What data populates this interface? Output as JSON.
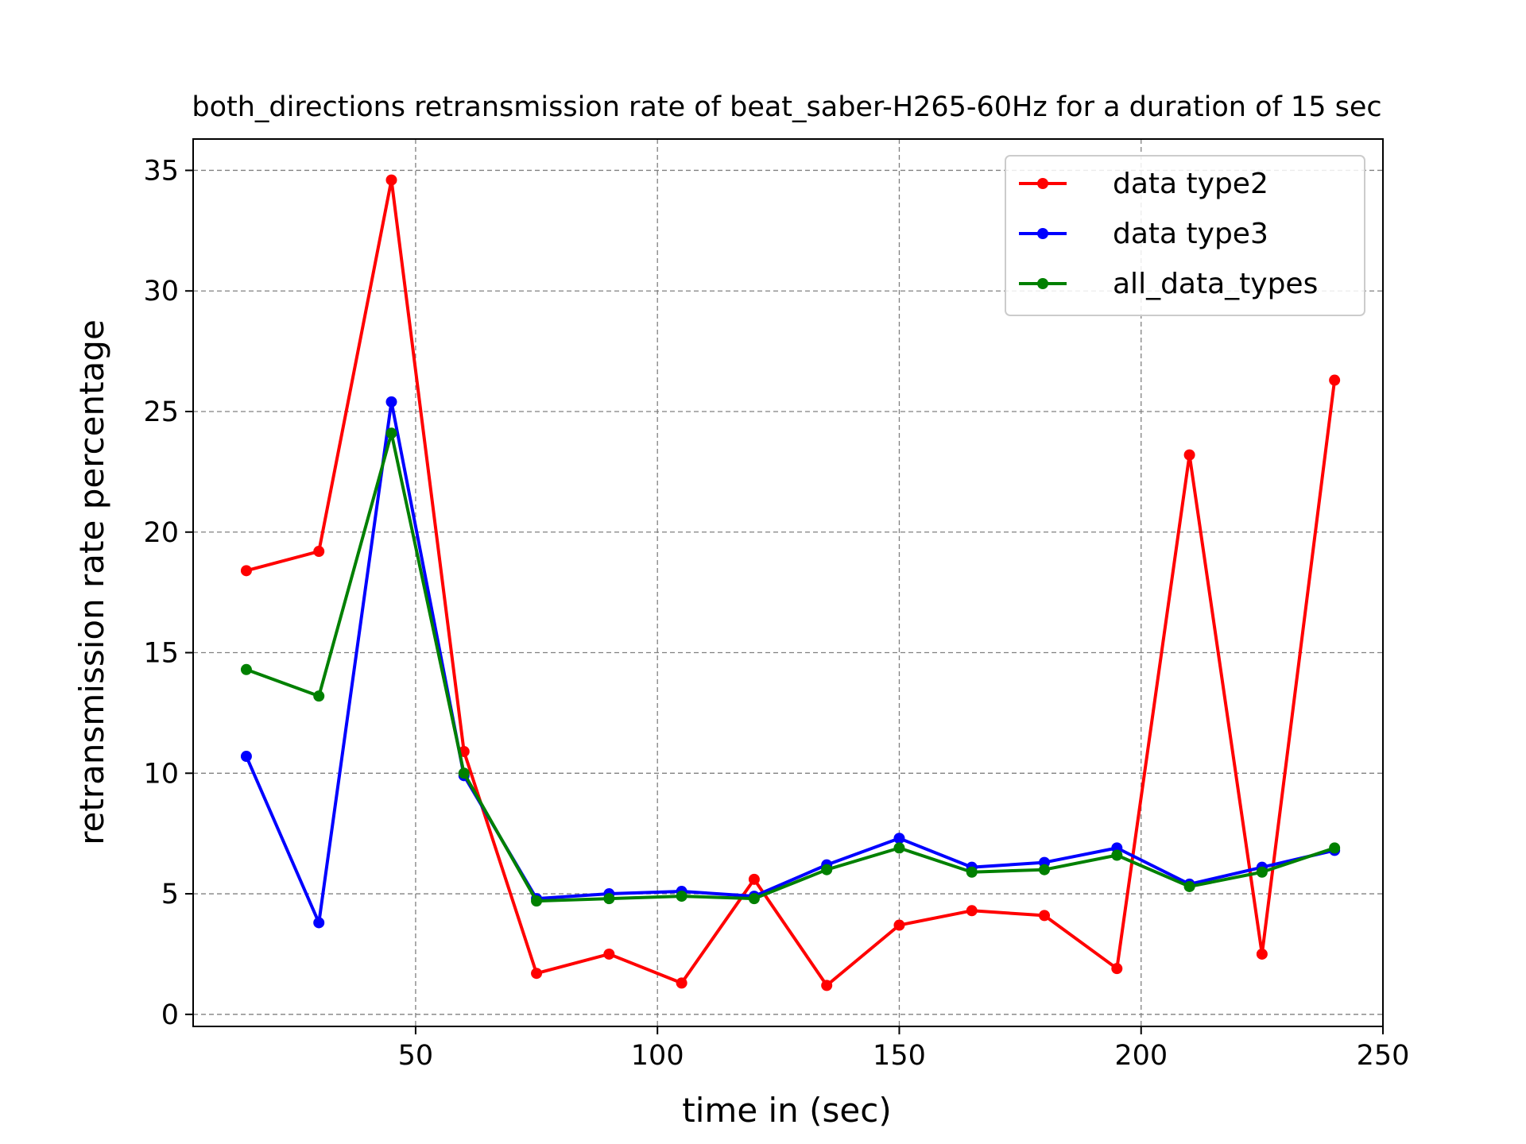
{
  "chart_data": {
    "type": "line",
    "title": "both_directions retransmission rate of beat_saber-H265-60Hz for a duration of 15 sec",
    "xlabel": "time in (sec)",
    "ylabel": "retransmission rate percentage",
    "xlim": [
      4,
      250
    ],
    "ylim": [
      -0.5,
      36.3
    ],
    "xticks": [
      50,
      100,
      150,
      200,
      250
    ],
    "yticks": [
      0,
      5,
      10,
      15,
      20,
      25,
      30,
      35
    ],
    "grid": true,
    "legend_position": "top-right",
    "x": [
      15,
      30,
      45,
      60,
      75,
      90,
      105,
      120,
      135,
      150,
      165,
      180,
      195,
      210,
      225,
      240
    ],
    "series": [
      {
        "name": "data type2",
        "color": "#ff0000",
        "values": [
          18.4,
          19.2,
          34.6,
          10.9,
          1.7,
          2.5,
          1.3,
          5.6,
          1.2,
          3.7,
          4.3,
          4.1,
          1.9,
          23.2,
          2.5,
          26.3
        ]
      },
      {
        "name": "data type3",
        "color": "#0000ff",
        "values": [
          10.7,
          3.8,
          25.4,
          9.9,
          4.8,
          5.0,
          5.1,
          4.9,
          6.2,
          7.3,
          6.1,
          6.3,
          6.9,
          5.4,
          6.1,
          6.8
        ]
      },
      {
        "name": "all_data_types",
        "color": "#008000",
        "values": [
          14.3,
          13.2,
          24.1,
          10.0,
          4.7,
          4.8,
          4.9,
          4.8,
          6.0,
          6.9,
          5.9,
          6.0,
          6.6,
          5.3,
          5.9,
          6.9
        ]
      }
    ]
  }
}
